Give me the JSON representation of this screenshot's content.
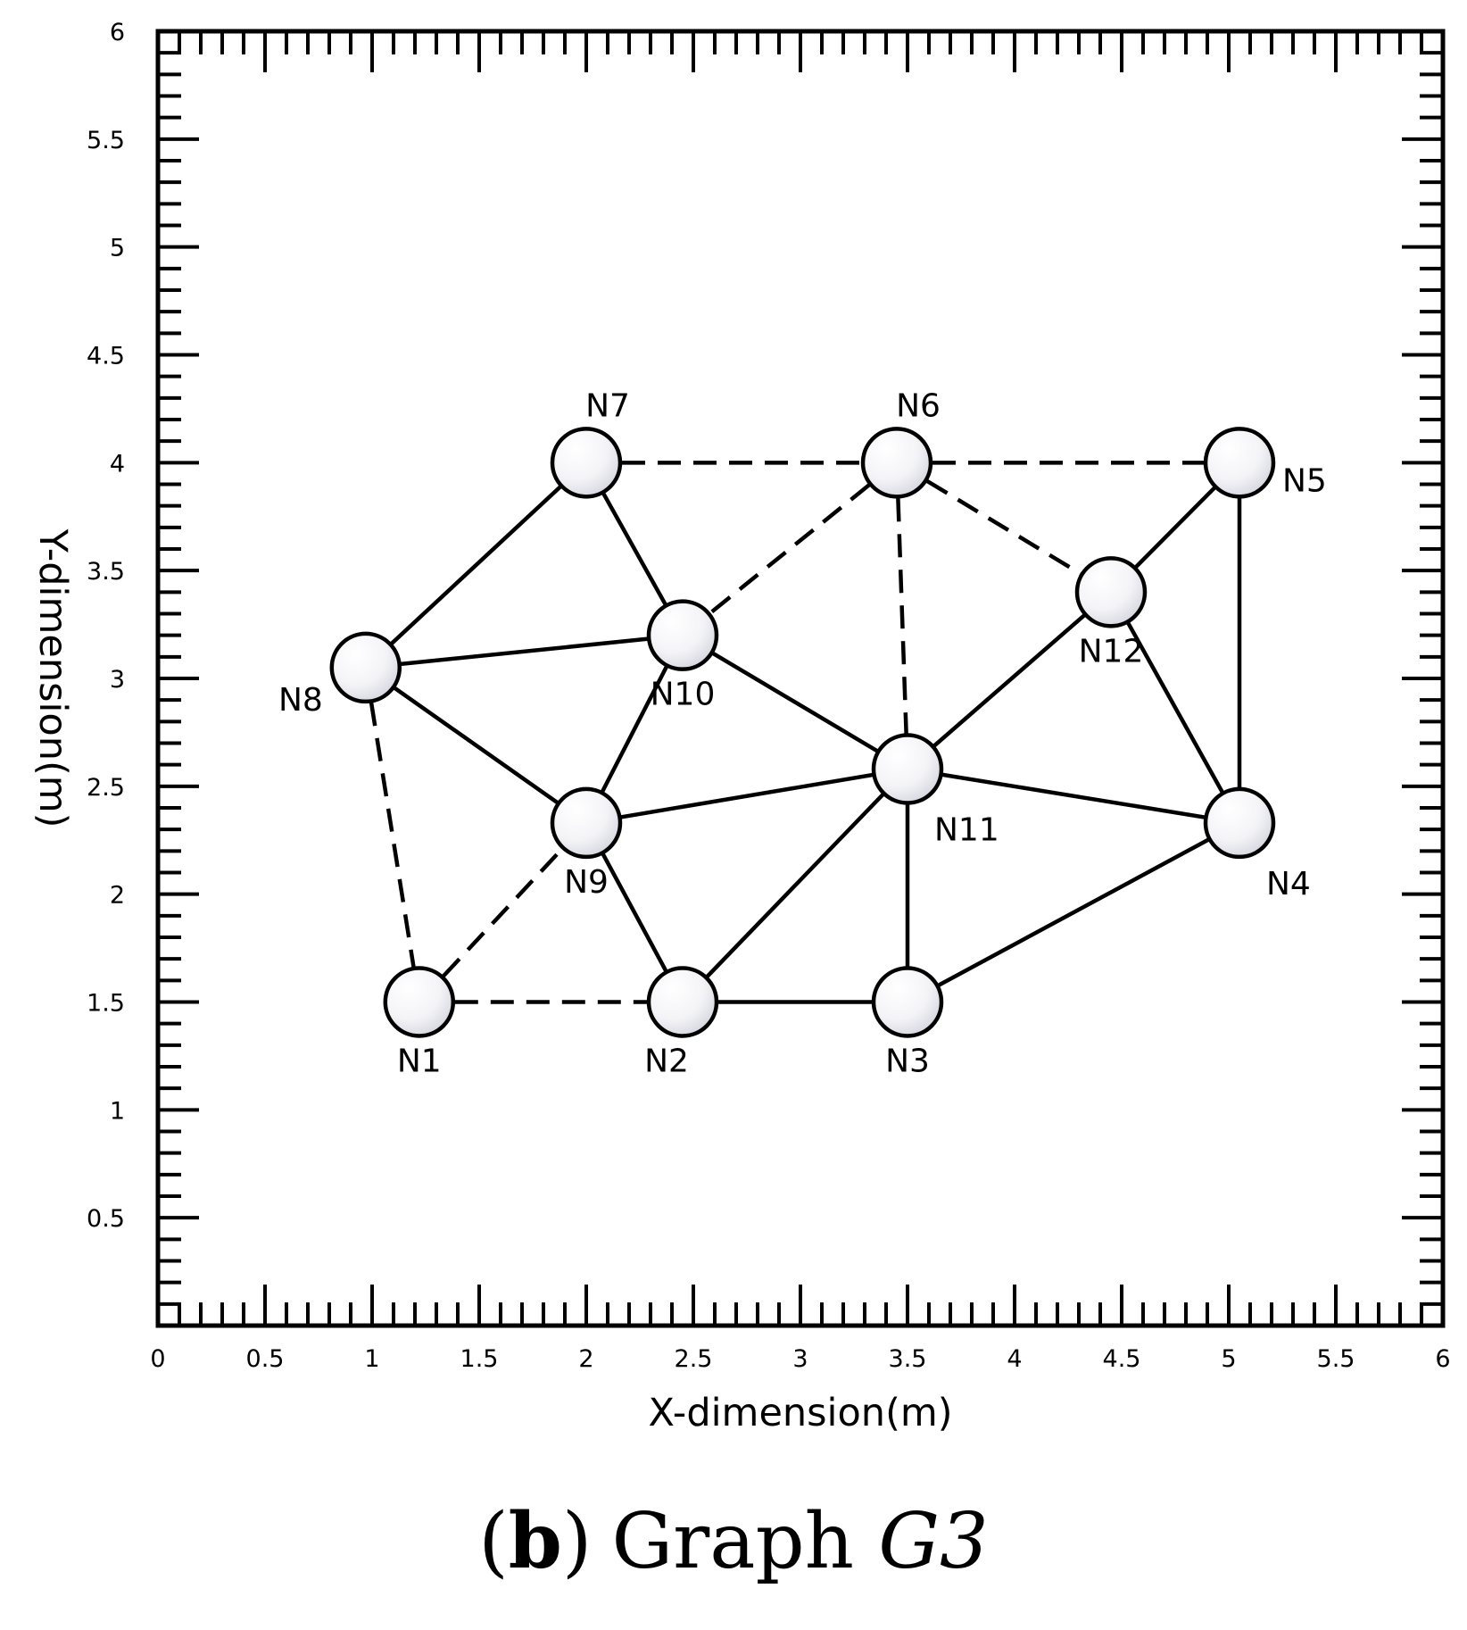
{
  "chart_data": {
    "type": "network",
    "xlabel": "X-dimension(m)",
    "ylabel": "Y-dimension(m)",
    "xlim": [
      0,
      6
    ],
    "ylim": [
      0,
      6
    ],
    "xticks": [
      "0",
      "0.5",
      "1",
      "1.5",
      "2",
      "2.5",
      "3",
      "3.5",
      "4",
      "4.5",
      "5",
      "5.5",
      "6"
    ],
    "yticks": [
      "0.5",
      "1",
      "1.5",
      "2",
      "2.5",
      "3",
      "3.5",
      "4",
      "4.5",
      "5",
      "5.5",
      "6"
    ],
    "nodes": [
      {
        "id": "N1",
        "label": "N1",
        "x": 1.22,
        "y": 1.5,
        "label_pos": "below"
      },
      {
        "id": "N2",
        "label": "N2",
        "x": 2.45,
        "y": 1.5,
        "label_pos": "below-left"
      },
      {
        "id": "N3",
        "label": "N3",
        "x": 3.5,
        "y": 1.5,
        "label_pos": "below"
      },
      {
        "id": "N4",
        "label": "N4",
        "x": 5.05,
        "y": 2.33,
        "label_pos": "below-right"
      },
      {
        "id": "N5",
        "label": "N5",
        "x": 5.05,
        "y": 4.0,
        "label_pos": "right"
      },
      {
        "id": "N6",
        "label": "N6",
        "x": 3.45,
        "y": 4.0,
        "label_pos": "above"
      },
      {
        "id": "N7",
        "label": "N7",
        "x": 2.0,
        "y": 4.0,
        "label_pos": "above"
      },
      {
        "id": "N8",
        "label": "N8",
        "x": 0.97,
        "y": 3.05,
        "label_pos": "left"
      },
      {
        "id": "N9",
        "label": "N9",
        "x": 2.0,
        "y": 2.33,
        "label_pos": "below"
      },
      {
        "id": "N10",
        "label": "N10",
        "x": 2.45,
        "y": 3.2,
        "label_pos": "below"
      },
      {
        "id": "N11",
        "label": "N11",
        "x": 3.5,
        "y": 2.58,
        "label_pos": "below-right"
      },
      {
        "id": "N12",
        "label": "N12",
        "x": 4.45,
        "y": 3.4,
        "label_pos": "below"
      }
    ],
    "edges": [
      {
        "from": "N7",
        "to": "N8",
        "style": "solid"
      },
      {
        "from": "N7",
        "to": "N10",
        "style": "solid"
      },
      {
        "from": "N8",
        "to": "N10",
        "style": "solid"
      },
      {
        "from": "N8",
        "to": "N9",
        "style": "solid"
      },
      {
        "from": "N9",
        "to": "N10",
        "style": "solid"
      },
      {
        "from": "N10",
        "to": "N11",
        "style": "solid"
      },
      {
        "from": "N9",
        "to": "N11",
        "style": "solid"
      },
      {
        "from": "N9",
        "to": "N2",
        "style": "solid"
      },
      {
        "from": "N2",
        "to": "N11",
        "style": "solid"
      },
      {
        "from": "N2",
        "to": "N3",
        "style": "solid"
      },
      {
        "from": "N3",
        "to": "N11",
        "style": "solid"
      },
      {
        "from": "N3",
        "to": "N4",
        "style": "solid"
      },
      {
        "from": "N11",
        "to": "N4",
        "style": "solid"
      },
      {
        "from": "N11",
        "to": "N12",
        "style": "solid"
      },
      {
        "from": "N12",
        "to": "N4",
        "style": "solid"
      },
      {
        "from": "N12",
        "to": "N5",
        "style": "solid"
      },
      {
        "from": "N5",
        "to": "N4",
        "style": "solid"
      },
      {
        "from": "N7",
        "to": "N6",
        "style": "dashed"
      },
      {
        "from": "N6",
        "to": "N5",
        "style": "dashed"
      },
      {
        "from": "N6",
        "to": "N10",
        "style": "dashed"
      },
      {
        "from": "N6",
        "to": "N11",
        "style": "dashed"
      },
      {
        "from": "N6",
        "to": "N12",
        "style": "dashed"
      },
      {
        "from": "N8",
        "to": "N1",
        "style": "dashed"
      },
      {
        "from": "N1",
        "to": "N9",
        "style": "dashed"
      },
      {
        "from": "N1",
        "to": "N2",
        "style": "dashed"
      }
    ]
  },
  "caption": {
    "open_paren": "(",
    "letter": "b",
    "close_paren": ")",
    "title": "Graph",
    "symbol": "G3"
  }
}
